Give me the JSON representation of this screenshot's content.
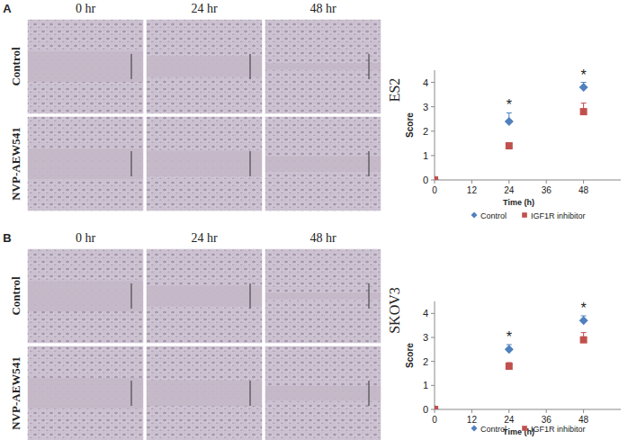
{
  "chart_data": [
    {
      "type": "scatter",
      "title": "ES2",
      "y_label": "Score",
      "x_label": "Time (h)",
      "x": [
        0,
        24,
        48
      ],
      "xlim": [
        0,
        60
      ],
      "xticks": [
        0,
        12,
        24,
        36,
        48
      ],
      "ylim": [
        0,
        4.5
      ],
      "yticks": [
        0,
        1,
        2,
        3,
        4
      ],
      "grid": false,
      "legend": "bottom",
      "series": [
        {
          "name": "Control",
          "color": "#4f81bd",
          "marker": "diamond",
          "values": [
            0,
            2.4,
            3.8
          ],
          "errors": [
            0,
            0.35,
            0.2
          ]
        },
        {
          "name": "IGF1R inhibitor",
          "color": "#c0504d",
          "marker": "square",
          "values": [
            0,
            1.4,
            2.8
          ],
          "errors": [
            0,
            0.05,
            0.35
          ]
        }
      ],
      "annotations": [
        {
          "x": 24,
          "text": "*"
        },
        {
          "x": 48,
          "text": "*"
        }
      ]
    },
    {
      "type": "scatter",
      "title": "SKOV3",
      "y_label": "Score",
      "x_label": "Time (h)",
      "x": [
        0,
        24,
        48
      ],
      "xlim": [
        0,
        60
      ],
      "xticks": [
        0,
        12,
        24,
        36,
        48
      ],
      "ylim": [
        0,
        4.5
      ],
      "yticks": [
        0,
        1,
        2,
        3,
        4
      ],
      "grid": false,
      "legend": "bottom",
      "series": [
        {
          "name": "Control",
          "color": "#4f81bd",
          "marker": "diamond",
          "values": [
            0,
            2.5,
            3.7
          ],
          "errors": [
            0,
            0.2,
            0.2
          ]
        },
        {
          "name": "IGF1R inhibitor",
          "color": "#c0504d",
          "marker": "square",
          "values": [
            0,
            1.8,
            2.9
          ],
          "errors": [
            0,
            0.15,
            0.3
          ]
        }
      ],
      "annotations": [
        {
          "x": 24,
          "text": "*"
        },
        {
          "x": 48,
          "text": "*"
        }
      ]
    }
  ],
  "panels": [
    {
      "label": "A",
      "columns": [
        "0 hr",
        "24 hr",
        "48 hr"
      ],
      "rows": [
        "Control",
        "NVP-AEW541"
      ]
    },
    {
      "label": "B",
      "columns": [
        "0 hr",
        "24 hr",
        "48 hr"
      ],
      "rows": [
        "Control",
        "NVP-AEW541"
      ]
    }
  ]
}
